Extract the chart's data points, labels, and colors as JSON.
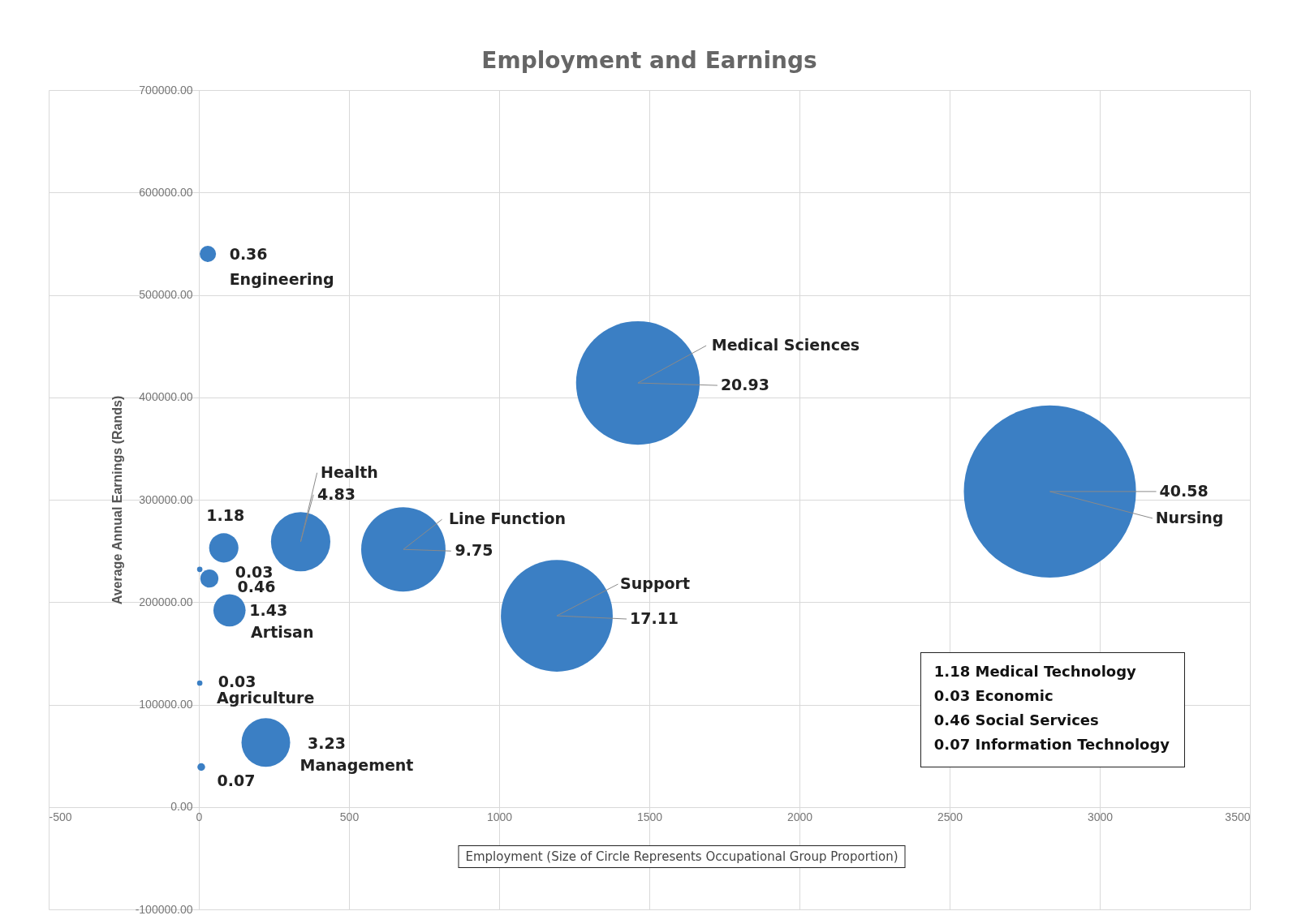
{
  "chart_data": {
    "type": "bubble",
    "title": "Employment and Earnings",
    "xlabel": "Employment (Size of Circle Represents Occupational Group Proportion)",
    "ylabel": "Average Annual Earnings (Rands)",
    "x": [
      30,
      1462,
      2834,
      339,
      681,
      1192,
      83,
      3,
      35,
      102,
      3,
      223,
      8
    ],
    "values": [
      540000,
      414000,
      308000,
      259000,
      251500,
      186700,
      253000,
      232000,
      223000,
      192000,
      121000,
      63000,
      39000
    ],
    "sizes": [
      0.009,
      0.516,
      1,
      0.119,
      0.24,
      0.422,
      0.029,
      0.001,
      0.011,
      0.035,
      0.001,
      0.08,
      0.002
    ],
    "color": "#3b7fc4",
    "marker": "circle",
    "xlim": [
      -500,
      3500
    ],
    "xticks": [
      -500,
      0,
      500,
      1000,
      1500,
      2000,
      2500,
      3000,
      3500
    ],
    "ylim": [
      -100000,
      700000
    ],
    "yticks": [
      {
        "value": -100000,
        "label": "-100000.00"
      },
      {
        "value": 0,
        "label": "0.00"
      },
      {
        "value": 100000,
        "label": "100000.00"
      },
      {
        "value": 200000,
        "label": "200000.00"
      },
      {
        "value": 300000,
        "label": "300000.00"
      },
      {
        "value": 400000,
        "label": "400000.00"
      },
      {
        "value": 500000,
        "label": "500000.00"
      },
      {
        "value": 600000,
        "label": "600000.00"
      },
      {
        "value": 700000,
        "label": "700000.00"
      }
    ],
    "grid": true,
    "legend": false,
    "annotations": [
      {
        "text": "0.36",
        "x": 30,
        "y": 540000
      },
      {
        "text": "Engineering",
        "x": 30,
        "y": 540000
      },
      {
        "text": "Medical Sciences",
        "x": 1462,
        "y": 414000
      },
      {
        "text": "20.93",
        "x": 1462,
        "y": 414000
      },
      {
        "text": "40.58",
        "x": 2834,
        "y": 308000
      },
      {
        "text": "Nursing",
        "x": 2834,
        "y": 308000
      },
      {
        "text": "Health",
        "x": 339,
        "y": 259000
      },
      {
        "text": "4.83",
        "x": 339,
        "y": 259000
      },
      {
        "text": "Line Function",
        "x": 681,
        "y": 251500
      },
      {
        "text": "9.75",
        "x": 681,
        "y": 251500
      },
      {
        "text": "Support",
        "x": 1192,
        "y": 186700
      },
      {
        "text": "17.11",
        "x": 1192,
        "y": 186700
      },
      {
        "text": "1.18",
        "x": 83,
        "y": 253000
      },
      {
        "text": "0.03",
        "x": 3,
        "y": 232000
      },
      {
        "text": "0.46",
        "x": 35,
        "y": 223000
      },
      {
        "text": "1.43",
        "x": 102,
        "y": 192000
      },
      {
        "text": "Artisan",
        "x": 102,
        "y": 192000
      },
      {
        "text": "0.03",
        "x": 3,
        "y": 121000
      },
      {
        "text": "Agriculture",
        "x": 3,
        "y": 121000
      },
      {
        "text": "3.23",
        "x": 223,
        "y": 63000
      },
      {
        "text": "Management",
        "x": 223,
        "y": 63000
      },
      {
        "text": "0.07",
        "x": 8,
        "y": 39000
      },
      "1.18 Medical Technology",
      "0.03 Economic",
      "0.46 Social Services",
      "0.07 Information Technology"
    ]
  }
}
